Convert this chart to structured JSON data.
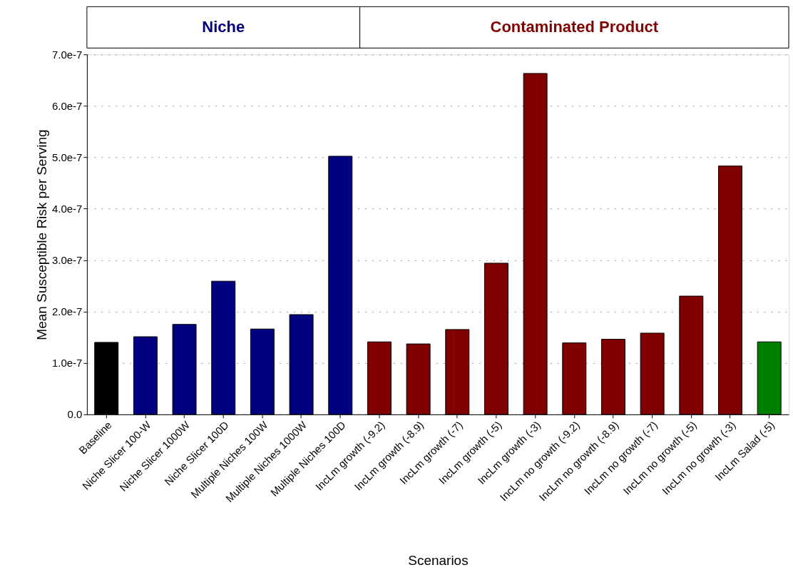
{
  "chart_data": {
    "type": "bar",
    "xlabel": "Scenarios",
    "ylabel": "Mean Susceptible Risk per Serving",
    "annotations": [
      "Niche",
      "Contaminated Product"
    ],
    "categories": [
      "Baseline",
      "Niche Slicer 100-W",
      "Niche Slicer 1000W",
      "Niche Slicer 100D",
      "Multiple Niches 100W",
      "Multiple Niches 1000W",
      "Multiple Niches 100D",
      "IncLm growth (-9.2)",
      "IncLm growth (-8.9)",
      "IncLm growth (-7)",
      "IncLm growth (-5)",
      "IncLm growth (-3)",
      "IncLm no growth (-9.2)",
      "IncLm no growth (-8.9)",
      "IncLm no growth (-7)",
      "IncLm no growth (-5)",
      "IncLm no growth (-3)",
      "IncLm Salad (-5)"
    ],
    "values": [
      1.4e-07,
      1.51e-07,
      1.75e-07,
      2.59e-07,
      1.66e-07,
      1.94e-07,
      5.02e-07,
      1.41e-07,
      1.37e-07,
      1.65e-07,
      2.94e-07,
      6.63e-07,
      1.39e-07,
      1.46e-07,
      1.58e-07,
      2.3e-07,
      4.83e-07,
      1.41e-07
    ],
    "colors": [
      "#000000",
      "#000080",
      "#000080",
      "#000080",
      "#000080",
      "#000080",
      "#000080",
      "#800000",
      "#800000",
      "#800000",
      "#800000",
      "#800000",
      "#800000",
      "#800000",
      "#800000",
      "#800000",
      "#800000",
      "#008000"
    ],
    "ylim": [
      0,
      7e-07
    ],
    "yticks": [
      {
        "value": 0,
        "label": "0.0"
      },
      {
        "value": 1e-07,
        "label": "1.0e-7"
      },
      {
        "value": 2e-07,
        "label": "2.0e-7"
      },
      {
        "value": 3e-07,
        "label": "3.0e-7"
      },
      {
        "value": 4e-07,
        "label": "4.0e-7"
      },
      {
        "value": 5e-07,
        "label": "5.0e-7"
      },
      {
        "value": 6e-07,
        "label": "6.0e-7"
      },
      {
        "value": 7e-07,
        "label": "7.0e-7"
      }
    ],
    "grid": "y"
  }
}
